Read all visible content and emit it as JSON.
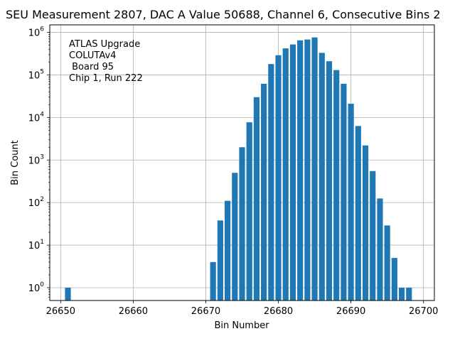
{
  "chart_data": {
    "type": "bar",
    "title": "SEU Measurement 2807, DAC A Value 50688, Channel 6, Consecutive Bins 2",
    "xlabel": "Bin Number",
    "ylabel": "Bin Count",
    "yscale": "log",
    "xlim": [
      26648.5,
      26701.5
    ],
    "ylim": [
      0.5,
      1500000
    ],
    "grid": true,
    "xticks": [
      26650,
      26660,
      26670,
      26680,
      26690,
      26700
    ],
    "yticks": [
      {
        "value": 1,
        "base": "10",
        "exp": "0"
      },
      {
        "value": 10,
        "base": "10",
        "exp": "1"
      },
      {
        "value": 100,
        "base": "10",
        "exp": "2"
      },
      {
        "value": 1000,
        "base": "10",
        "exp": "3"
      },
      {
        "value": 10000,
        "base": "10",
        "exp": "4"
      },
      {
        "value": 100000,
        "base": "10",
        "exp": "5"
      },
      {
        "value": 1000000,
        "base": "10",
        "exp": "6"
      }
    ],
    "bar_color": "#1f77b4",
    "annotation": [
      "ATLAS Upgrade",
      "COLUTAv4",
      " Board 95",
      "Chip 1, Run 222"
    ],
    "bins": [
      26651,
      26671,
      26672,
      26673,
      26674,
      26675,
      26676,
      26677,
      26678,
      26679,
      26680,
      26681,
      26682,
      26683,
      26684,
      26685,
      26686,
      26687,
      26688,
      26689,
      26690,
      26691,
      26692,
      26693,
      26694,
      26695,
      26696,
      26697,
      26698
    ],
    "values": [
      1,
      4,
      38,
      110,
      500,
      2000,
      7700,
      30000,
      62000,
      180000,
      290000,
      420000,
      520000,
      650000,
      680000,
      760000,
      330000,
      210000,
      130000,
      62000,
      21000,
      6300,
      2200,
      550,
      125,
      29,
      5,
      1,
      1
    ]
  }
}
